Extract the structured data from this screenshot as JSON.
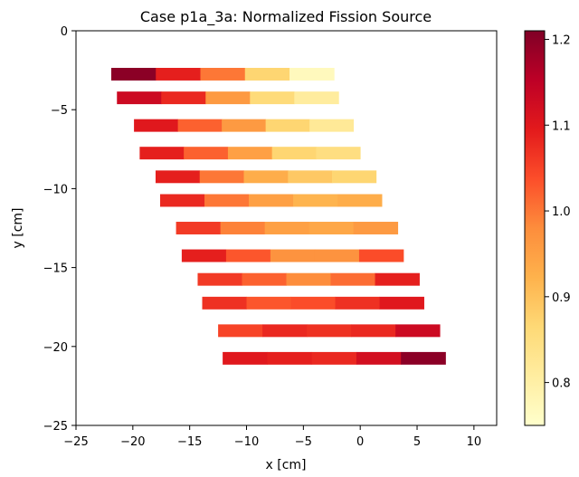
{
  "chart_data": {
    "type": "heatmap",
    "title": "Case p1a_3a: Normalized Fission Source",
    "xlabel": "x [cm]",
    "ylabel": "y [cm]",
    "xlim": [
      -25,
      12
    ],
    "ylim": [
      -25,
      0
    ],
    "x_ticks": [
      -25,
      -20,
      -15,
      -10,
      -5,
      0,
      5,
      10
    ],
    "y_ticks": [
      0,
      -5,
      -10,
      -15,
      -20,
      -25
    ],
    "colorbar": {
      "colormap": "YlOrRd",
      "range": [
        0.75,
        1.21
      ],
      "ticks": [
        0.8,
        0.9,
        1.0,
        1.1,
        1.2
      ]
    },
    "rows": [
      {
        "y": -2.75,
        "x_start": -21.9,
        "x_end": -2.3,
        "values": [
          1.2,
          1.09,
          1.0,
          0.87,
          0.77
        ]
      },
      {
        "y": -4.25,
        "x_start": -21.4,
        "x_end": -1.9,
        "values": [
          1.13,
          1.08,
          0.96,
          0.86,
          0.81
        ]
      },
      {
        "y": -6.0,
        "x_start": -19.9,
        "x_end": -0.6,
        "values": [
          1.1,
          1.02,
          0.96,
          0.87,
          0.82
        ]
      },
      {
        "y": -7.75,
        "x_start": -19.4,
        "x_end": 0.0,
        "values": [
          1.09,
          1.02,
          0.95,
          0.87,
          0.85
        ]
      },
      {
        "y": -9.25,
        "x_start": -18.0,
        "x_end": 1.4,
        "values": [
          1.09,
          1.0,
          0.93,
          0.89,
          0.87
        ]
      },
      {
        "y": -10.75,
        "x_start": -17.6,
        "x_end": 1.9,
        "values": [
          1.08,
          1.0,
          0.95,
          0.92,
          0.93
        ]
      },
      {
        "y": -12.5,
        "x_start": -16.2,
        "x_end": 3.3,
        "values": [
          1.06,
          0.99,
          0.95,
          0.94,
          0.96
        ]
      },
      {
        "y": -14.25,
        "x_start": -15.7,
        "x_end": 3.8,
        "values": [
          1.09,
          1.03,
          0.97,
          0.97,
          1.04
        ]
      },
      {
        "y": -15.75,
        "x_start": -14.3,
        "x_end": 5.2,
        "values": [
          1.06,
          1.02,
          0.98,
          1.01,
          1.09
        ]
      },
      {
        "y": -17.25,
        "x_start": -13.9,
        "x_end": 5.6,
        "values": [
          1.07,
          1.03,
          1.04,
          1.07,
          1.1
        ]
      },
      {
        "y": -19.0,
        "x_start": -12.5,
        "x_end": 7.0,
        "values": [
          1.05,
          1.08,
          1.07,
          1.08,
          1.13
        ]
      },
      {
        "y": -20.75,
        "x_start": -12.1,
        "x_end": 7.5,
        "values": [
          1.1,
          1.09,
          1.08,
          1.12,
          1.2
        ]
      }
    ],
    "row_height": 0.8,
    "grid": false,
    "legend": "colorbar-right"
  }
}
